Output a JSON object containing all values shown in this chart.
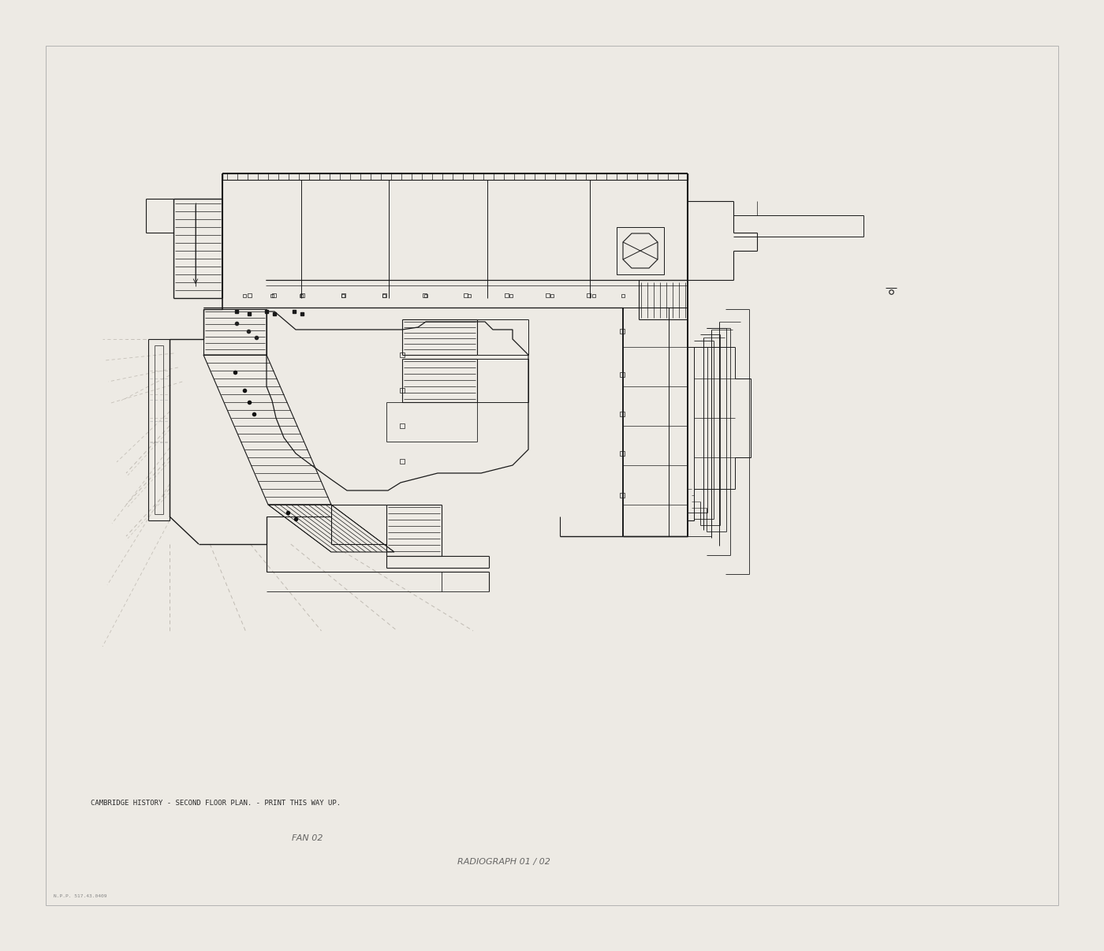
{
  "bg_color": "#edeae4",
  "paper_color": "#edeae4",
  "line_color": "#1a1a1a",
  "dim_color": "#555555",
  "dash_color": "#c0bcb5",
  "title_text": "CAMBRIDGE HISTORY - SECOND FLOOR PLAN. - PRINT THIS WAY UP.",
  "bottom_text1": "FAN 02",
  "bottom_text2": "RADIOGRAPH 01 / 02",
  "archive_text": "N.P.P. 517.43.0409"
}
